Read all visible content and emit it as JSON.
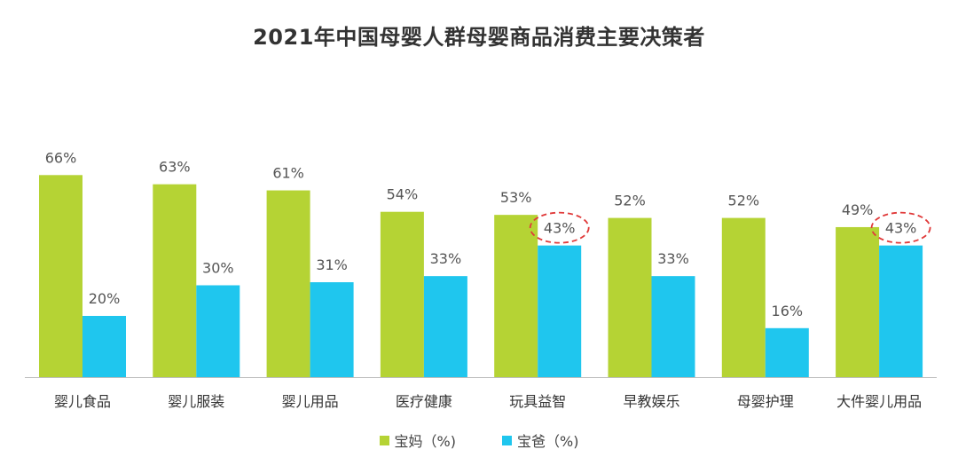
{
  "chart_data": {
    "type": "bar",
    "title": "2021年中国母婴人群母婴商品消费主要决策者",
    "categories": [
      "婴儿食品",
      "婴儿服装",
      "婴儿用品",
      "医疗健康",
      "玩具益智",
      "早教娱乐",
      "母婴护理",
      "大件婴儿用品"
    ],
    "series": [
      {
        "name": "宝妈（%)",
        "color": "#b5d334",
        "values": [
          66,
          63,
          61,
          54,
          53,
          52,
          52,
          49
        ],
        "labels": [
          "66%",
          "63%",
          "61%",
          "54%",
          "53%",
          "52%",
          "52%",
          "49%"
        ]
      },
      {
        "name": "宝爸（%)",
        "color": "#1fc6ee",
        "values": [
          20,
          30,
          31,
          33,
          43,
          33,
          16,
          43
        ],
        "labels": [
          "20%",
          "30%",
          "31%",
          "33%",
          "43%",
          "33%",
          "16%",
          "43%"
        ]
      }
    ],
    "highlighted": [
      {
        "category": "玩具益智",
        "series": "宝爸（%)",
        "style": "red dashed ellipse"
      },
      {
        "category": "大件婴儿用品",
        "series": "宝爸（%)",
        "style": "red dashed ellipse"
      }
    ],
    "highlight_color": "#e03a3a",
    "ylim": [
      0,
      70
    ],
    "xlabel": "",
    "ylabel": "",
    "grid": false,
    "legend_position": "bottom"
  }
}
